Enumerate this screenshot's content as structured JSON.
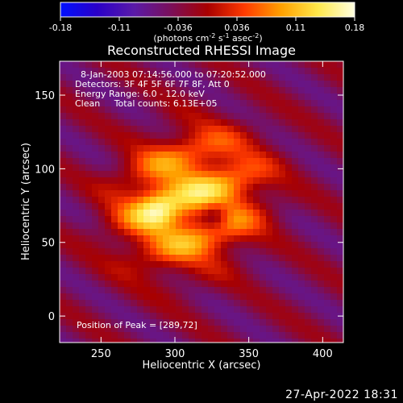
{
  "chart_data": {
    "type": "heatmap",
    "title": "Reconstructed RHESSI Image",
    "xlabel": "Heliocentric X (arcsec)",
    "ylabel": "Heliocentric Y (arcsec)",
    "xlim": [
      222,
      414
    ],
    "ylim": [
      -18,
      173
    ],
    "xticks": [
      250,
      300,
      350,
      400
    ],
    "yticks": [
      0,
      50,
      100,
      150
    ],
    "colorbar": {
      "range": [
        -0.18,
        0.18
      ],
      "ticks": [
        "-0.18",
        "-0.11",
        "-0.036",
        "0.036",
        "0.11",
        "0.18"
      ],
      "unit_label": "(photons cm^-2 s^-1 asec^-2)",
      "colors": [
        "#0010ff",
        "#2a00c8",
        "#5a1aa8",
        "#7a0f5a",
        "#a80000",
        "#ff3a00",
        "#ffa000",
        "#ffe84a",
        "#ffffe0"
      ]
    },
    "info_lines": [
      "8-Jan-2003 07:14:56.000 to 07:20:52.000",
      "Detectors: 3F 4F 5F 6F 7F 8F, Att 0",
      "Energy Range: 6.0 - 12.0 keV",
      "Clean     Total counts: 6.13E+05"
    ],
    "peak_label": "Position of Peak = [289,72]",
    "peak": [
      289,
      72
    ],
    "source_center": [
      310,
      78
    ],
    "background_value": -0.04,
    "max_value": 0.18
  },
  "footer": {
    "timestamp": "27-Apr-2022 18:31"
  }
}
